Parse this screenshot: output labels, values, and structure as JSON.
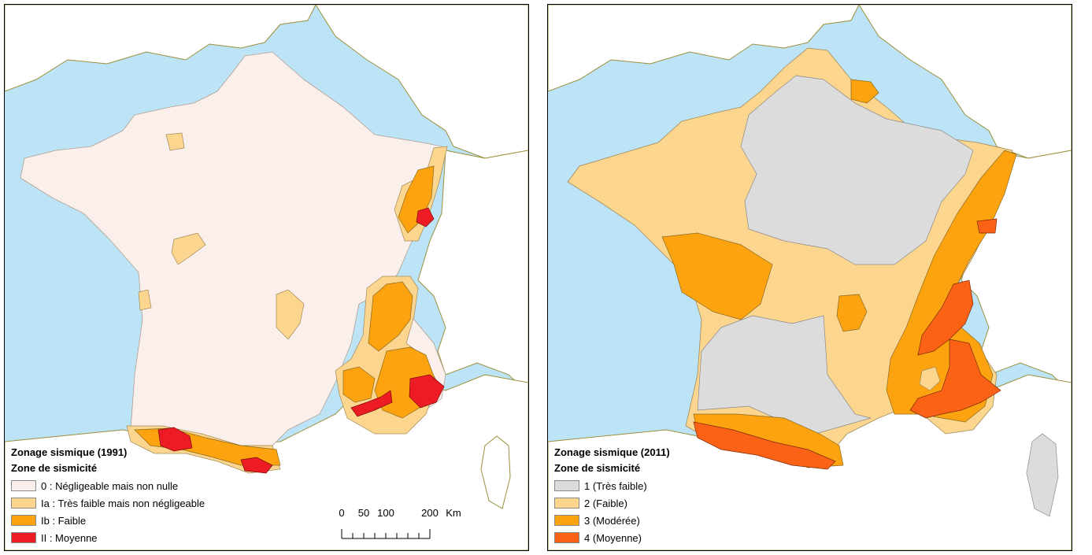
{
  "colors": {
    "sea": "#bde4f6",
    "foreign_land": "#ffffff",
    "border_line": "#9c8f3a",
    "map1991": {
      "zone0": "#fbefec",
      "zoneIa": "#fcd58e",
      "zoneIb": "#fca30f",
      "zoneII": "#ed1c24"
    },
    "map2011": {
      "zone1": "#dcdcdc",
      "zone2": "#fcd58e",
      "zone3": "#fca30f",
      "zone4": "#fb6216"
    }
  },
  "map1991": {
    "legend_title": "Zonage sismique (1991)",
    "legend_subtitle": "Zone de sismicité",
    "items": [
      {
        "label": "0 : Négligeable mais non nulle",
        "color": "#fbefec"
      },
      {
        "label": "Ia : Très faible mais non négligeable",
        "color": "#fcd58e"
      },
      {
        "label": "Ib : Faible",
        "color": "#fca30f"
      },
      {
        "label": "II : Moyenne",
        "color": "#ed1c24"
      }
    ],
    "scale": {
      "ticks": [
        "0",
        "50",
        "100",
        "200"
      ],
      "unit": "Km"
    }
  },
  "map2011": {
    "legend_title": "Zonage sismique (2011)",
    "legend_subtitle": "Zone de sismicité",
    "items": [
      {
        "label": "1 (Très faible)",
        "color": "#dcdcdc"
      },
      {
        "label": "2 (Faible)",
        "color": "#fcd58e"
      },
      {
        "label": "3  (Modérée)",
        "color": "#fca30f"
      },
      {
        "label": "4 (Moyenne)",
        "color": "#fb6216"
      }
    ]
  }
}
